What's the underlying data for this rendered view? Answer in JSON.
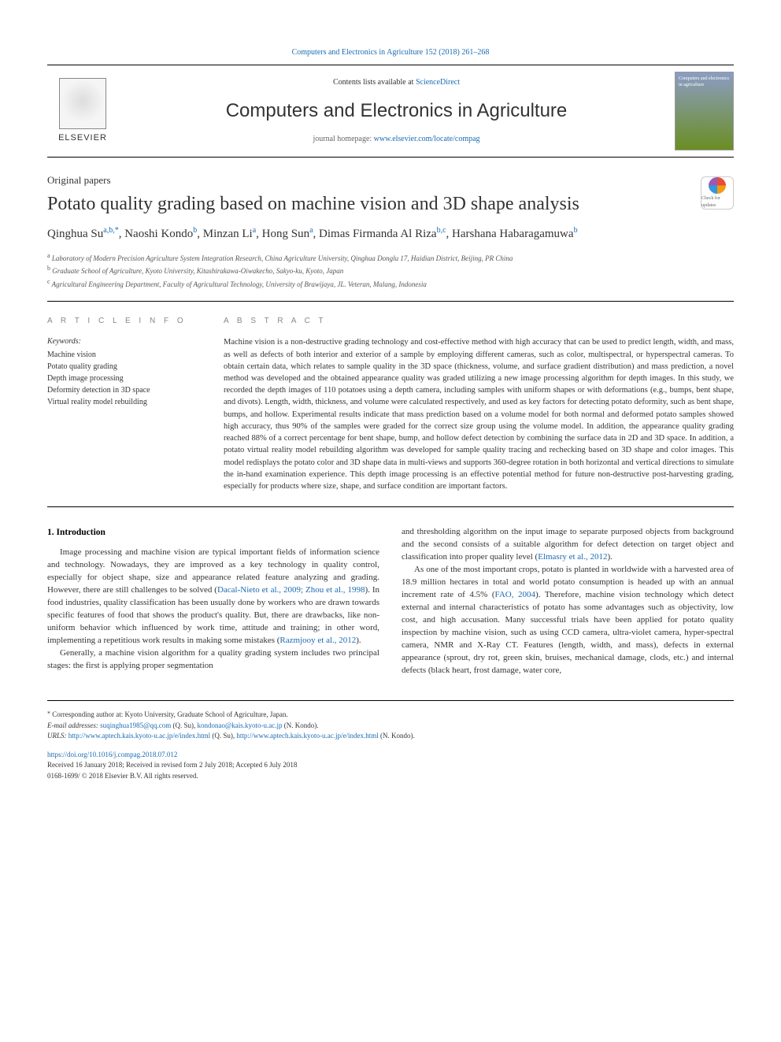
{
  "header": {
    "top_link": "Computers and Electronics in Agriculture 152 (2018) 261–268",
    "contents_prefix": "Contents lists available at ",
    "contents_link": "ScienceDirect",
    "journal_title": "Computers and Electronics in Agriculture",
    "homepage_prefix": "journal homepage: ",
    "homepage_link": "www.elsevier.com/locate/compag",
    "elsevier_label": "ELSEVIER",
    "cover_text": "Computers and electronics in agriculture"
  },
  "article": {
    "type": "Original papers",
    "title": "Potato quality grading based on machine vision and 3D shape analysis",
    "check_updates": "Check for updates",
    "authors_html": "Qinghua Su<sup class='sup'>a,b,*</sup>, Naoshi Kondo<sup class='sup'>b</sup>, Minzan Li<sup class='sup'>a</sup>, Hong Sun<sup class='sup'>a</sup>, Dimas Firmanda Al Riza<sup class='sup'>b,c</sup>, Harshana Habaragamuwa<sup class='sup'>b</sup>",
    "affiliations": [
      {
        "sup": "a",
        "text": "Laboratory of Modern Precision Agriculture System Integration Research, China Agriculture University, Qinghua Donglu 17, Haidian District, Beijing, PR China"
      },
      {
        "sup": "b",
        "text": "Graduate School of Agriculture, Kyoto University, Kitashirakawa-Oiwakecho, Sakyo-ku, Kyoto, Japan"
      },
      {
        "sup": "c",
        "text": "Agricultural Engineering Department, Faculty of Agricultural Technology, University of Brawijaya, JL. Veteran, Malang, Indonesia"
      }
    ]
  },
  "info": {
    "heading": "A R T I C L E  I N F O",
    "keywords_label": "Keywords:",
    "keywords": [
      "Machine vision",
      "Potato quality grading",
      "Depth image processing",
      "Deformity detection in 3D space",
      "Virtual reality model rebuilding"
    ]
  },
  "abstract": {
    "heading": "A B S T R A C T",
    "text": "Machine vision is a non-destructive grading technology and cost-effective method with high accuracy that can be used to predict length, width, and mass, as well as defects of both interior and exterior of a sample by employing different cameras, such as color, multispectral, or hyperspectral cameras. To obtain certain data, which relates to sample quality in the 3D space (thickness, volume, and surface gradient distribution) and mass prediction, a novel method was developed and the obtained appearance quality was graded utilizing a new image processing algorithm for depth images. In this study, we recorded the depth images of 110 potatoes using a depth camera, including samples with uniform shapes or with deformations (e.g., bumps, bent shape, and divots). Length, width, thickness, and volume were calculated respectively, and used as key factors for detecting potato deformity, such as bent shape, bumps, and hollow. Experimental results indicate that mass prediction based on a volume model for both normal and deformed potato samples showed high accuracy, thus 90% of the samples were graded for the correct size group using the volume model. In addition, the appearance quality grading reached 88% of a correct percentage for bent shape, bump, and hollow defect detection by combining the surface data in 2D and 3D space. In addition, a potato virtual reality model rebuilding algorithm was developed for sample quality tracing and rechecking based on 3D shape and color images. This model redisplays the potato color and 3D shape data in multi-views and supports 360-degree rotation in both horizontal and vertical directions to simulate the in-hand examination experience. This depth image processing is an effective potential method for future non-destructive post-harvesting grading, especially for products where size, shape, and surface condition are important factors."
  },
  "body": {
    "section1_heading": "1. Introduction",
    "col1_p1": "Image processing and machine vision are typical important fields of information science and technology. Nowadays, they are improved as a key technology in quality control, especially for object shape, size and appearance related feature analyzing and grading. However, there are still challenges to be solved (",
    "col1_p1_link": "Dacal-Nieto et al., 2009; Zhou et al., 1998",
    "col1_p1_tail": "). In food industries, quality classification has been usually done by workers who are drawn towards specific features of food that shows the product's quality. But, there are drawbacks, like non-uniform behavior which influenced by work time, attitude and training; in other word, implementing a repetitious work results in making some mistakes (",
    "col1_p1_link2": "Razmjooy et al., 2012",
    "col1_p1_tail2": ").",
    "col1_p2": "Generally, a machine vision algorithm for a quality grading system includes two principal stages: the first is applying proper segmentation",
    "col2_p1": "and thresholding algorithm on the input image to separate purposed objects from background and the second consists of a suitable algorithm for defect detection on target object and classification into proper quality level (",
    "col2_p1_link": "Elmasry et al., 2012",
    "col2_p1_tail": ").",
    "col2_p2": "As one of the most important crops, potato is planted in worldwide with a harvested area of 18.9 million hectares in total and world potato consumption is headed up with an annual increment rate of 4.5% (",
    "col2_p2_link": "FAO, 2004",
    "col2_p2_tail": "). Therefore, machine vision technology which detect external and internal characteristics of potato has some advantages such as objectivity, low cost, and high accusation. Many successful trials have been applied for potato quality inspection by machine vision, such as using CCD camera, ultra-violet camera, hyper-spectral camera, NMR and X-Ray CT. Features (length, width, and mass), defects in external appearance (sprout, dry rot, green skin, bruises, mechanical damage, clods, etc.) and internal defects (black heart, frost damage, water core,"
  },
  "footer": {
    "corr_star": "⁎",
    "corr_text": "Corresponding author at: Kyoto University, Graduate School of Agriculture, Japan.",
    "email_label": "E-mail addresses: ",
    "email1": "suqinghua1985@qq.com",
    "email1_who": " (Q. Su), ",
    "email2": "kondonao@kais.kyoto-u.ac.jp",
    "email2_who": " (N. Kondo).",
    "urls_label": "URLS: ",
    "url1": "http://www.aptech.kais.kyoto-u.ac.jp/e/index.html",
    "url1_who": " (Q. Su), ",
    "url2": "http://www.aptech.kais.kyoto-u.ac.jp/e/index.html",
    "url2_who": " (N. Kondo).",
    "doi": "https://doi.org/10.1016/j.compag.2018.07.012",
    "received": "Received 16 January 2018; Received in revised form 2 July 2018; Accepted 6 July 2018",
    "copyright": "0168-1699/ © 2018 Elsevier B.V. All rights reserved."
  },
  "colors": {
    "link": "#1a6bb3",
    "text": "#333333",
    "rule": "#000000"
  }
}
